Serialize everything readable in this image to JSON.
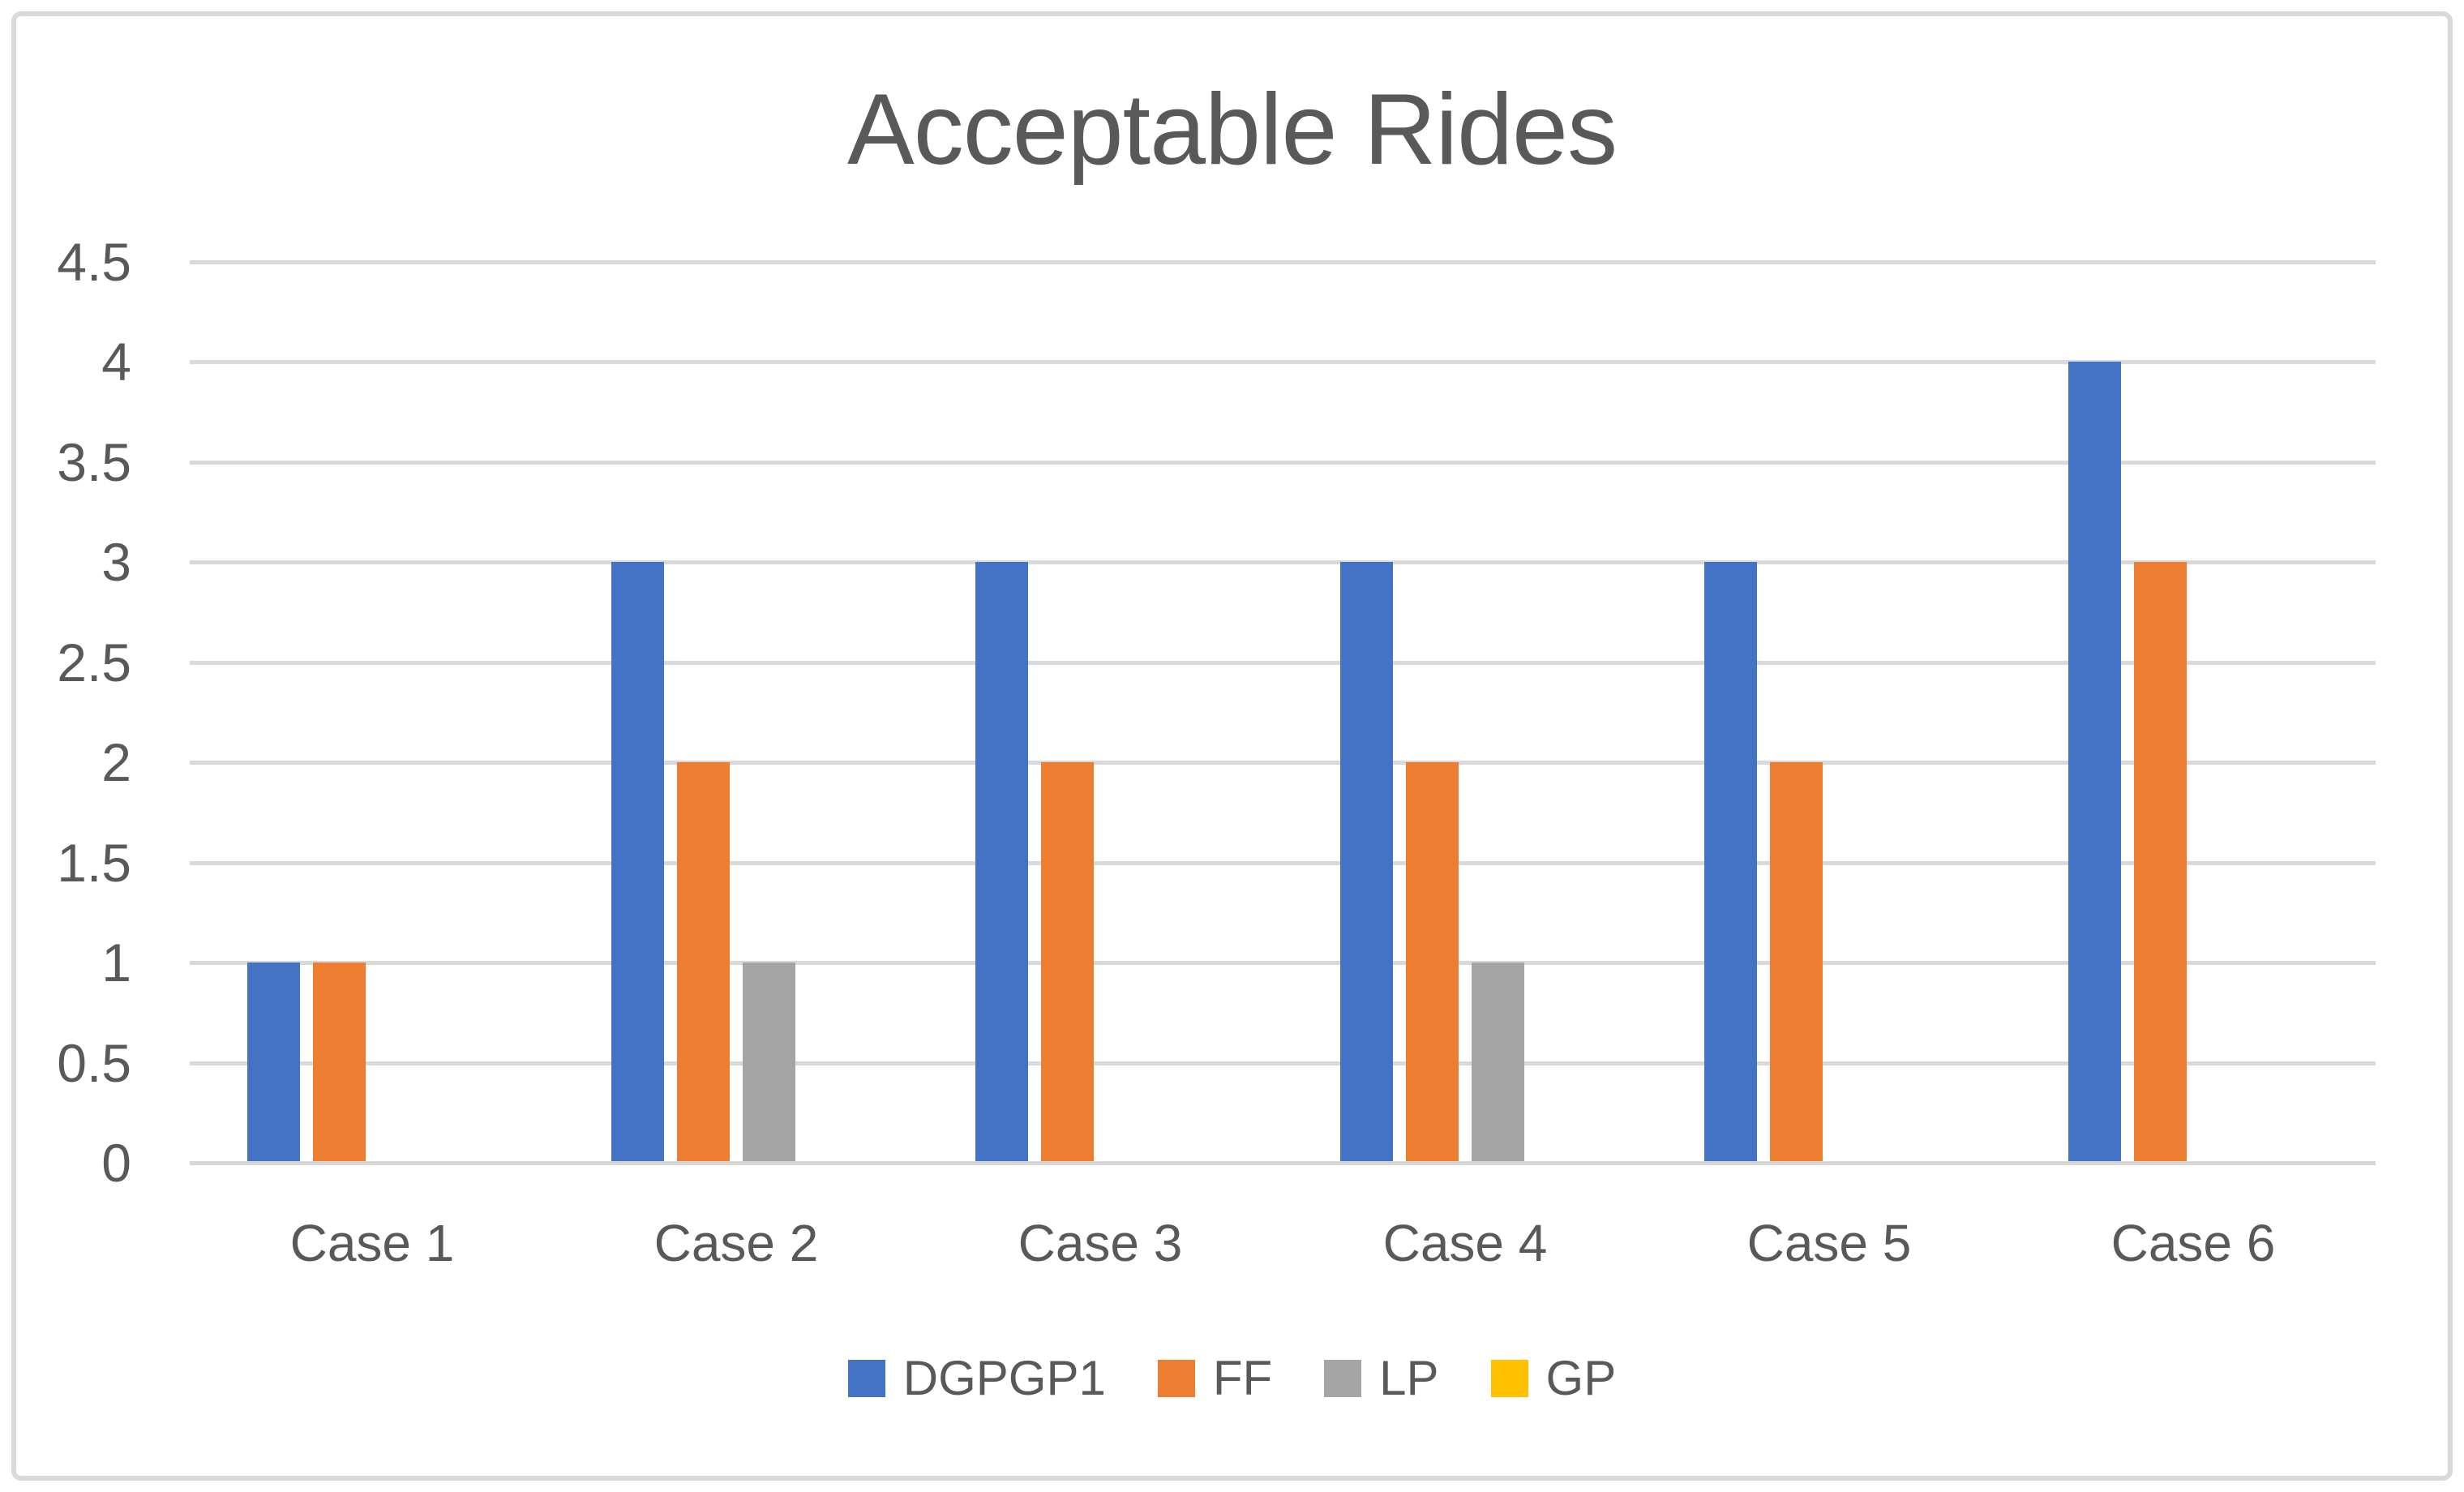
{
  "title": "Acceptable Rides",
  "colors": {
    "text": "#595959",
    "gridline": "#D9D9D9",
    "frame_border": "#D9D9D9",
    "background": "#FFFFFF"
  },
  "chart_data": {
    "type": "bar",
    "title": "Acceptable Rides",
    "categories": [
      "Case 1",
      "Case 2",
      "Case 3",
      "Case 4",
      "Case 5",
      "Case 6"
    ],
    "series": [
      {
        "name": "DGPGP1",
        "color": "#4472C4",
        "values": [
          1,
          3,
          3,
          3,
          3,
          4
        ]
      },
      {
        "name": "FF",
        "color": "#ED7D31",
        "values": [
          1,
          2,
          2,
          2,
          2,
          3
        ]
      },
      {
        "name": "LP",
        "color": "#A5A5A5",
        "values": [
          0,
          1,
          0,
          1,
          0,
          0
        ]
      },
      {
        "name": "GP",
        "color": "#FFC000",
        "values": [
          0,
          0,
          0,
          0,
          0,
          0
        ]
      }
    ],
    "xlabel": "",
    "ylabel": "",
    "ylim": [
      0,
      4.5
    ],
    "ytick_step": 0.5,
    "grid": true,
    "legend_position": "bottom"
  }
}
